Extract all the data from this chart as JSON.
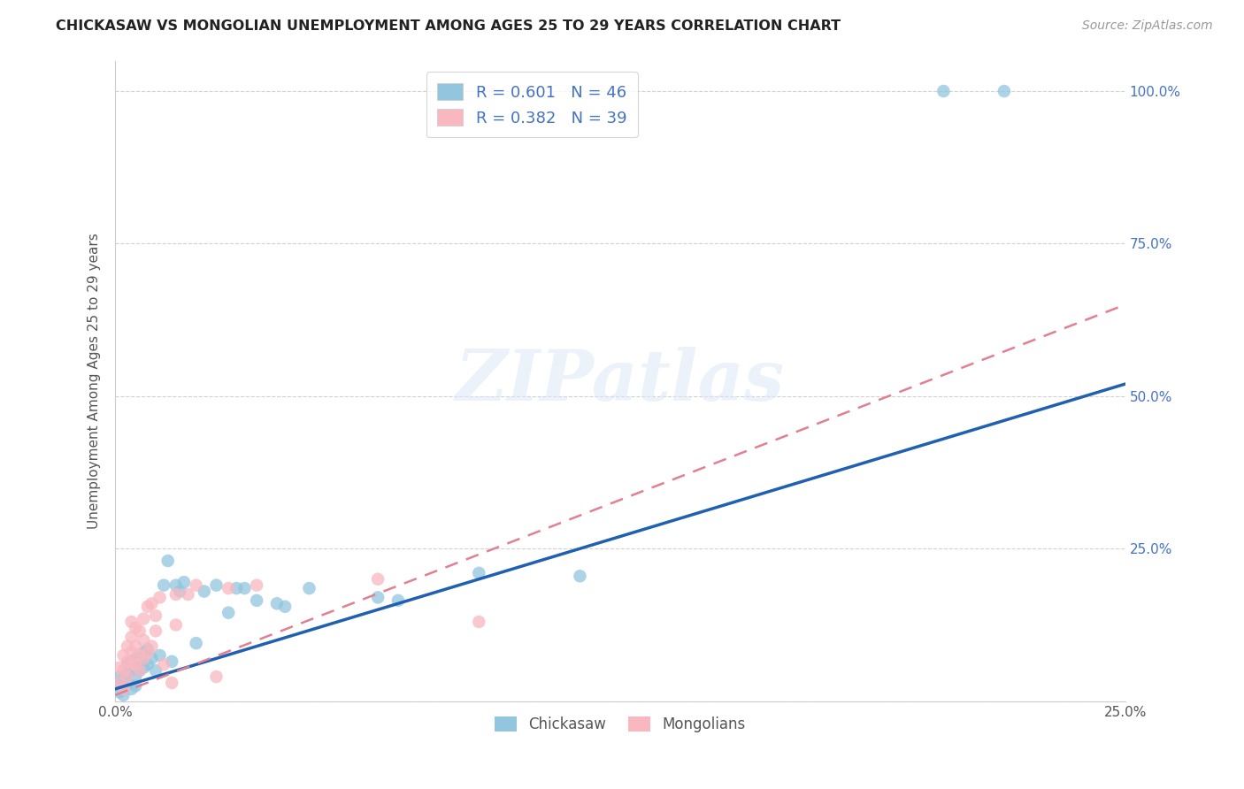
{
  "title": "CHICKASAW VS MONGOLIAN UNEMPLOYMENT AMONG AGES 25 TO 29 YEARS CORRELATION CHART",
  "source": "Source: ZipAtlas.com",
  "ylabel": "Unemployment Among Ages 25 to 29 years",
  "xlim": [
    0.0,
    0.25
  ],
  "ylim": [
    0.0,
    1.05
  ],
  "xtick_positions": [
    0.0,
    0.05,
    0.1,
    0.15,
    0.2,
    0.25
  ],
  "xticklabels": [
    "0.0%",
    "",
    "",
    "",
    "",
    "25.0%"
  ],
  "ytick_positions": [
    0.0,
    0.25,
    0.5,
    0.75,
    1.0
  ],
  "yticklabels": [
    "",
    "25.0%",
    "50.0%",
    "75.0%",
    "100.0%"
  ],
  "chickasaw_R": 0.601,
  "chickasaw_N": 46,
  "mongolian_R": 0.382,
  "mongolian_N": 39,
  "chickasaw_color": "#92C5DE",
  "mongolian_color": "#F9B8C0",
  "chickasaw_line_color": "#2060B0",
  "mongolian_line_color": "#E08090",
  "legend_text_color": "#4472C4",
  "watermark_text": "ZIPatlas",
  "background_color": "#ffffff",
  "right_tick_color": "#4472C4",
  "bottom_tick_color": "#555555",
  "chickasaw_line_x": [
    0.0,
    0.25
  ],
  "chickasaw_line_y": [
    0.02,
    0.52
  ],
  "mongolian_line_x": [
    0.0,
    0.25
  ],
  "mongolian_line_y": [
    0.01,
    0.65
  ],
  "chickasaw_x": [
    0.001,
    0.001,
    0.001,
    0.002,
    0.002,
    0.002,
    0.003,
    0.003,
    0.003,
    0.004,
    0.004,
    0.004,
    0.005,
    0.005,
    0.005,
    0.006,
    0.006,
    0.007,
    0.007,
    0.008,
    0.008,
    0.009,
    0.01,
    0.011,
    0.012,
    0.013,
    0.014,
    0.015,
    0.016,
    0.017,
    0.02,
    0.022,
    0.025,
    0.028,
    0.03,
    0.032,
    0.035,
    0.04,
    0.042,
    0.048,
    0.065,
    0.07,
    0.09,
    0.115,
    0.205,
    0.22
  ],
  "chickasaw_y": [
    0.015,
    0.025,
    0.04,
    0.01,
    0.02,
    0.035,
    0.03,
    0.045,
    0.06,
    0.02,
    0.05,
    0.065,
    0.025,
    0.04,
    0.07,
    0.05,
    0.065,
    0.055,
    0.08,
    0.06,
    0.085,
    0.07,
    0.05,
    0.075,
    0.19,
    0.23,
    0.065,
    0.19,
    0.18,
    0.195,
    0.095,
    0.18,
    0.19,
    0.145,
    0.185,
    0.185,
    0.165,
    0.16,
    0.155,
    0.185,
    0.17,
    0.165,
    0.21,
    0.205,
    1.0,
    1.0
  ],
  "mongolian_x": [
    0.001,
    0.001,
    0.002,
    0.002,
    0.002,
    0.003,
    0.003,
    0.003,
    0.004,
    0.004,
    0.004,
    0.004,
    0.005,
    0.005,
    0.005,
    0.006,
    0.006,
    0.006,
    0.007,
    0.007,
    0.007,
    0.008,
    0.008,
    0.009,
    0.009,
    0.01,
    0.01,
    0.011,
    0.012,
    0.014,
    0.015,
    0.015,
    0.018,
    0.02,
    0.025,
    0.028,
    0.035,
    0.065,
    0.09
  ],
  "mongolian_y": [
    0.03,
    0.055,
    0.02,
    0.05,
    0.075,
    0.04,
    0.065,
    0.09,
    0.06,
    0.08,
    0.105,
    0.13,
    0.06,
    0.09,
    0.12,
    0.05,
    0.075,
    0.115,
    0.07,
    0.1,
    0.135,
    0.08,
    0.155,
    0.09,
    0.16,
    0.115,
    0.14,
    0.17,
    0.06,
    0.03,
    0.125,
    0.175,
    0.175,
    0.19,
    0.04,
    0.185,
    0.19,
    0.2,
    0.13
  ]
}
